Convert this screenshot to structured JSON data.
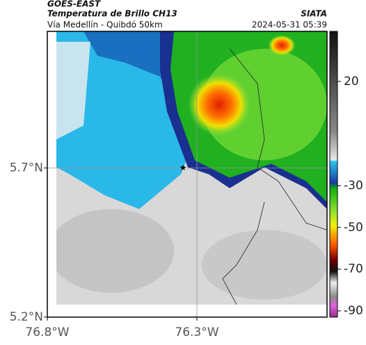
{
  "header": {
    "title": "GOES-EAST",
    "subtitle": "Temperatura de Brillo CH13",
    "route": "Vía Medellín - Quibdó 50km",
    "source": "SIATA",
    "datetime": "2024-05-31 05:39"
  },
  "map": {
    "xlim": [
      -76.8,
      -75.865
    ],
    "ylim": [
      5.2,
      6.158
    ],
    "xticks": [
      {
        "value": -76.8,
        "label": "76.8°W"
      },
      {
        "value": -76.3,
        "label": "76.3°W"
      }
    ],
    "yticks": [
      {
        "value": 5.2,
        "label": "5.2°N"
      },
      {
        "value": 5.7,
        "label": "5.7°N"
      }
    ],
    "grid": true
  },
  "colorbar": {
    "clim": [
      44,
      -93
    ],
    "ticks": [
      20,
      -30,
      -50,
      -70,
      -90
    ]
  }
}
